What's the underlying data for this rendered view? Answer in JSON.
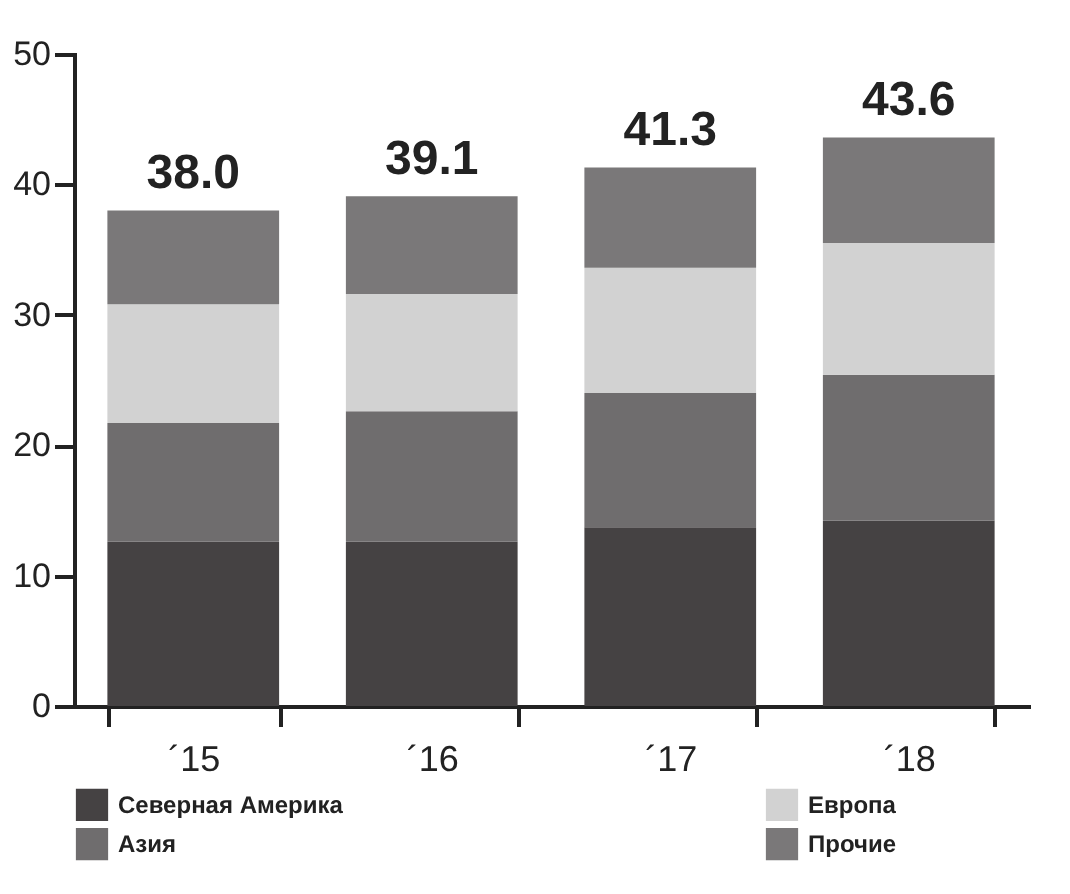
{
  "chart_data": {
    "type": "bar",
    "stacked": true,
    "categories": [
      "´15",
      "´16",
      "´17",
      "´18"
    ],
    "series": [
      {
        "name": "Северная Америка",
        "color": "#454243",
        "values": [
          12.6,
          12.6,
          13.7,
          14.2
        ]
      },
      {
        "name": "Азия",
        "color": "#6f6d6e",
        "values": [
          9.1,
          10.0,
          10.3,
          11.2
        ]
      },
      {
        "name": "Европа",
        "color": "#d2d2d2",
        "values": [
          9.1,
          9.0,
          9.6,
          10.1
        ]
      },
      {
        "name": "Прочие",
        "color": "#7a7879",
        "values": [
          7.2,
          7.5,
          7.7,
          8.1
        ]
      }
    ],
    "totals": [
      "38.0",
      "39.1",
      "41.3",
      "43.6"
    ],
    "ylim": [
      0,
      50
    ],
    "yticks": [
      0,
      10,
      20,
      30,
      40,
      50
    ],
    "grid": false,
    "legend": "bottom"
  }
}
